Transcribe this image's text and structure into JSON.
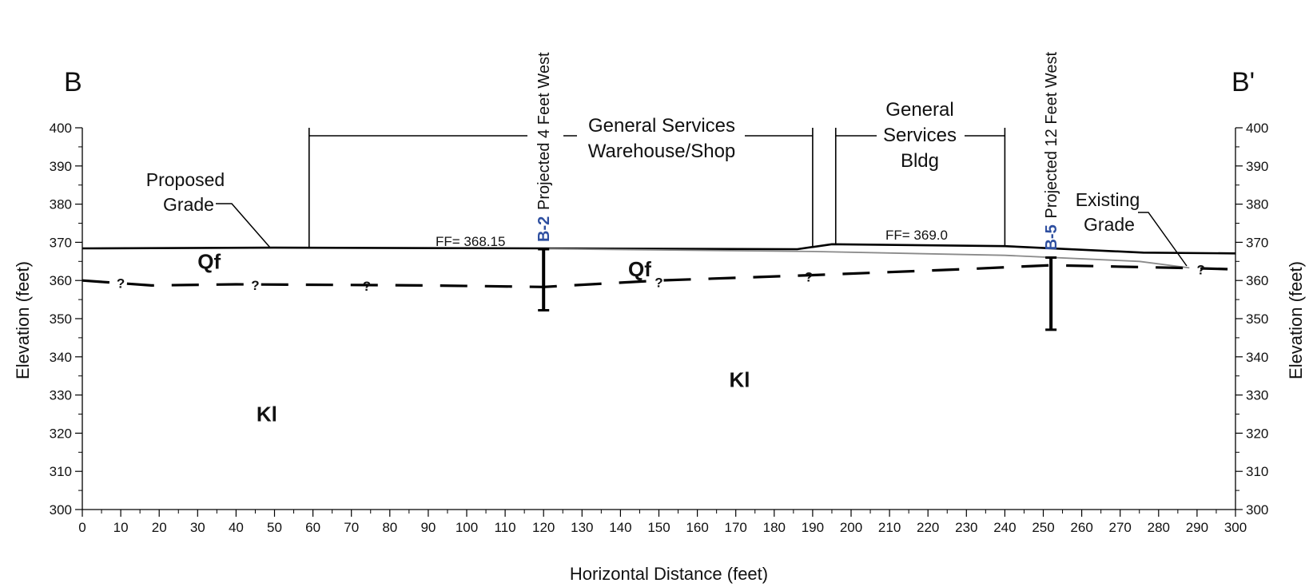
{
  "section": {
    "start_label": "B",
    "end_label": "B'",
    "x_title": "Horizontal Distance (feet)",
    "y_title_left": "Elevation (feet)",
    "y_title_right": "Elevation (feet)"
  },
  "chart_data": {
    "type": "line",
    "xlabel": "Horizontal Distance (feet)",
    "ylabel": "Elevation (feet)",
    "xlim": [
      0,
      300
    ],
    "ylim": [
      300,
      400
    ],
    "x_ticks": [
      0,
      10,
      20,
      30,
      40,
      50,
      60,
      70,
      80,
      90,
      100,
      110,
      120,
      130,
      140,
      150,
      160,
      170,
      180,
      190,
      200,
      210,
      220,
      230,
      240,
      250,
      260,
      270,
      280,
      290,
      300
    ],
    "y_ticks": [
      300,
      310,
      320,
      330,
      340,
      350,
      360,
      370,
      380,
      390,
      400
    ],
    "grid": false,
    "series": [
      {
        "key": "proposed",
        "color": "#000000",
        "points": [
          [
            0,
            368.4
          ],
          [
            50,
            368.6
          ],
          [
            120,
            368.4
          ],
          [
            186,
            368.2
          ],
          [
            195,
            369.5
          ],
          [
            240,
            369.0
          ],
          [
            276,
            367.3
          ],
          [
            300,
            367.1
          ]
        ]
      },
      {
        "key": "existing",
        "color": "#8a8a8a",
        "points": [
          [
            120,
            368.3
          ],
          [
            190,
            367.6
          ],
          [
            240,
            366.6
          ],
          [
            275,
            365.0
          ],
          [
            288,
            363.3
          ]
        ]
      },
      {
        "key": "contact",
        "color": "#000000",
        "points": [
          [
            0,
            360.0
          ],
          [
            18,
            358.7
          ],
          [
            40,
            359.0
          ],
          [
            90,
            358.7
          ],
          [
            120,
            358.3
          ],
          [
            150,
            360.0
          ],
          [
            190,
            361.4
          ],
          [
            230,
            363.0
          ],
          [
            252,
            364.0
          ],
          [
            290,
            363.2
          ],
          [
            300,
            362.9
          ]
        ]
      }
    ]
  },
  "buildings": [
    {
      "lines": [
        "General Services",
        "Warehouse/Shop"
      ],
      "x_start": 59,
      "x_end": 190,
      "ff": "FF= 368.15"
    },
    {
      "lines": [
        "General",
        "Services",
        "Bldg"
      ],
      "x_start": 196,
      "x_end": 240,
      "ff": "FF= 369.0"
    }
  ],
  "grades": [
    {
      "lines": [
        "Proposed",
        "Grade"
      ]
    },
    {
      "lines": [
        "Existing",
        "Grade"
      ]
    }
  ],
  "units": [
    {
      "label": "Qf",
      "x": 33,
      "y": 365
    },
    {
      "label": "Qf",
      "x": 145,
      "y": 363
    },
    {
      "label": "Kl",
      "x": 48,
      "y": 325
    },
    {
      "label": "Kl",
      "x": 171,
      "y": 334
    }
  ],
  "contact_query_marks": [
    {
      "label": "?",
      "x": 10,
      "y": 359.3
    },
    {
      "label": "?",
      "x": 45,
      "y": 358.8
    },
    {
      "label": "?",
      "x": 74,
      "y": 358.6
    },
    {
      "label": "?",
      "x": 150,
      "y": 359.5
    },
    {
      "label": "?",
      "x": 189,
      "y": 361.0
    },
    {
      "label": "?",
      "x": 291,
      "y": 362.9
    }
  ],
  "borings": [
    {
      "id": "B-2",
      "note": "Projected 4 Feet West",
      "x": 120,
      "top": 368.2,
      "bottom": 352.2,
      "color": "#2e4fa0"
    },
    {
      "id": "B-5",
      "note": "Projected 12 Feet West",
      "x": 252,
      "top": 366.0,
      "bottom": 347.1,
      "color": "#2e4fa0"
    }
  ]
}
